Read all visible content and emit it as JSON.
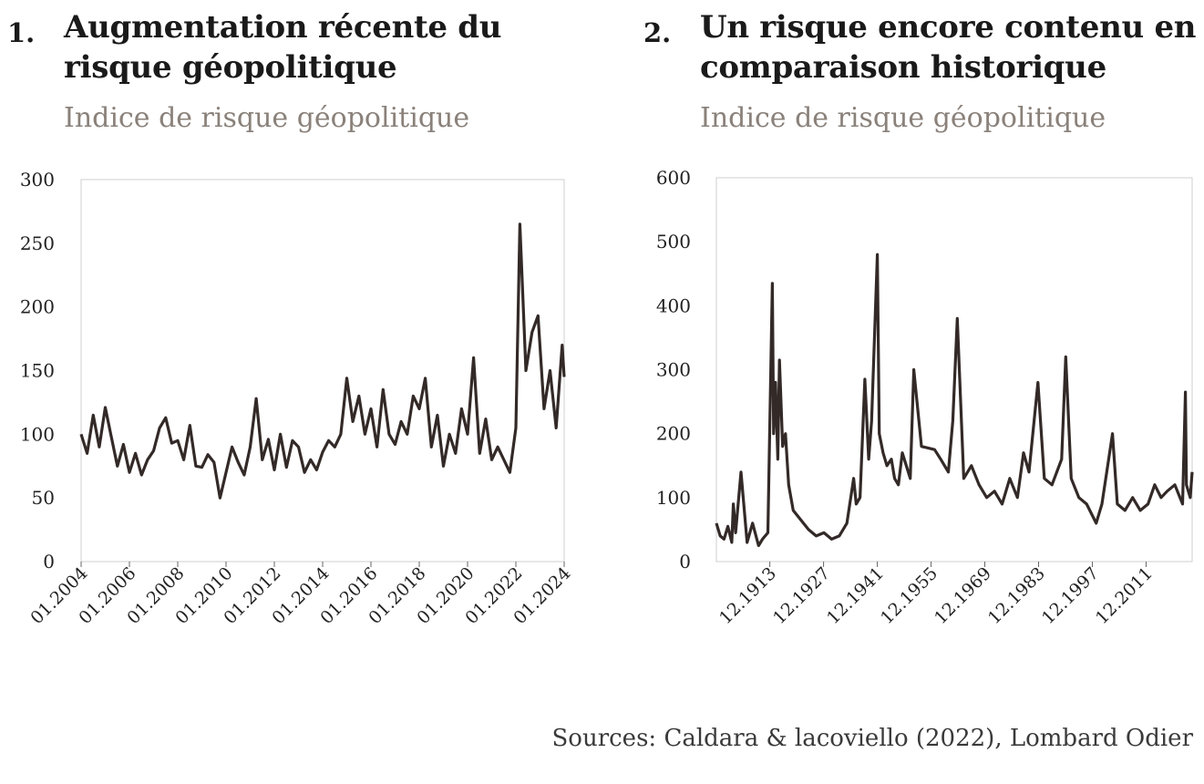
{
  "sources": "Sources: Caldara & lacoviello (2022), Lombard Odier",
  "charts": [
    {
      "number": "1.",
      "title_line1": "Augmentation récente du",
      "title_line2": "risque géopolitique",
      "subtitle": "Indice de risque géopolitique"
    },
    {
      "number": "2.",
      "title_line1": "Un risque encore contenu en",
      "title_line2": "comparaison historique",
      "subtitle": "Indice de risque géopolitique"
    }
  ],
  "chart_data": [
    {
      "type": "line",
      "title": "Augmentation récente du risque géopolitique",
      "subtitle": "Indice de risque géopolitique",
      "xlabel": "",
      "ylabel": "",
      "ylim": [
        0,
        300
      ],
      "yticks": [
        "0",
        "50",
        "100",
        "150",
        "200",
        "250",
        "300"
      ],
      "xticks": [
        "01.2004",
        "01.2006",
        "01.2008",
        "01.2010",
        "01.2012",
        "01.2014",
        "01.2016",
        "01.2018",
        "01.2020",
        "01.2022",
        "01.2024"
      ],
      "xlim": [
        "2004-01",
        "2024-01"
      ],
      "grid": false,
      "color": "#332a28",
      "series": [
        {
          "x": [
            "2004-01",
            "2004-04",
            "2004-07",
            "2004-10",
            "2005-01",
            "2005-04",
            "2005-07",
            "2005-10",
            "2006-01",
            "2006-04",
            "2006-07",
            "2006-10",
            "2007-01",
            "2007-04",
            "2007-07",
            "2007-10",
            "2008-01",
            "2008-04",
            "2008-07",
            "2008-10",
            "2009-01",
            "2009-04",
            "2009-07",
            "2009-10",
            "2010-01",
            "2010-04",
            "2010-07",
            "2010-10",
            "2011-01",
            "2011-04",
            "2011-07",
            "2011-10",
            "2012-01",
            "2012-04",
            "2012-07",
            "2012-10",
            "2013-01",
            "2013-04",
            "2013-07",
            "2013-10",
            "2014-01",
            "2014-04",
            "2014-07",
            "2014-10",
            "2015-01",
            "2015-04",
            "2015-07",
            "2015-10",
            "2016-01",
            "2016-04",
            "2016-07",
            "2016-10",
            "2017-01",
            "2017-04",
            "2017-07",
            "2017-10",
            "2018-01",
            "2018-04",
            "2018-07",
            "2018-10",
            "2019-01",
            "2019-04",
            "2019-07",
            "2019-10",
            "2020-01",
            "2020-04",
            "2020-07",
            "2020-10",
            "2021-01",
            "2021-04",
            "2021-07",
            "2021-10",
            "2022-01",
            "2022-03",
            "2022-06",
            "2022-09",
            "2022-12",
            "2023-03",
            "2023-06",
            "2023-09",
            "2023-12",
            "2024-01"
          ],
          "values": [
            100,
            85,
            115,
            90,
            121,
            98,
            75,
            92,
            70,
            85,
            68,
            80,
            87,
            105,
            113,
            93,
            95,
            80,
            107,
            75,
            74,
            84,
            78,
            50,
            70,
            90,
            78,
            68,
            90,
            128,
            80,
            96,
            72,
            100,
            74,
            95,
            90,
            70,
            80,
            72,
            86,
            95,
            90,
            100,
            144,
            110,
            130,
            100,
            120,
            90,
            135,
            100,
            92,
            110,
            100,
            130,
            120,
            144,
            90,
            115,
            75,
            100,
            85,
            120,
            100,
            160,
            85,
            112,
            80,
            90,
            80,
            70,
            105,
            265,
            150,
            180,
            193,
            120,
            150,
            105,
            170,
            145
          ]
        }
      ]
    },
    {
      "type": "line",
      "title": "Un risque encore contenu en comparaison historique",
      "subtitle": "Indice de risque géopolitique",
      "xlabel": "",
      "ylabel": "",
      "ylim": [
        0,
        600
      ],
      "yticks": [
        "0",
        "100",
        "200",
        "300",
        "400",
        "500",
        "600"
      ],
      "xticks": [
        "12.1913",
        "12.1927",
        "12.1941",
        "12.1955",
        "12.1969",
        "12.1983",
        "12.1997",
        "12.2011"
      ],
      "xlim": [
        "1900-01",
        "2023-12"
      ],
      "grid": false,
      "color": "#332a28",
      "series": [
        {
          "x": [
            "1900-01",
            "1901-01",
            "1902-01",
            "1903-01",
            "1904-01",
            "1904-06",
            "1905-01",
            "1906-06",
            "1908-01",
            "1909-06",
            "1911-01",
            "1912-01",
            "1913-06",
            "1914-08",
            "1914-12",
            "1915-06",
            "1916-01",
            "1916-06",
            "1917-04",
            "1918-01",
            "1918-11",
            "1920-01",
            "1922-01",
            "1924-01",
            "1926-01",
            "1928-01",
            "1930-01",
            "1932-01",
            "1934-01",
            "1935-10",
            "1936-06",
            "1937-06",
            "1938-09",
            "1939-09",
            "1940-06",
            "1941-12",
            "1942-06",
            "1943-06",
            "1944-06",
            "1945-08",
            "1946-06",
            "1947-06",
            "1948-06",
            "1950-07",
            "1951-06",
            "1953-06",
            "1956-11",
            "1958-06",
            "1960-06",
            "1961-08",
            "1962-10",
            "1964-06",
            "1966-06",
            "1968-06",
            "1970-06",
            "1972-06",
            "1974-06",
            "1976-06",
            "1978-06",
            "1980-01",
            "1981-06",
            "1983-10",
            "1985-06",
            "1987-06",
            "1989-12",
            "1991-01",
            "1992-06",
            "1994-06",
            "1996-06",
            "1998-12",
            "2000-06",
            "2001-09",
            "2003-03",
            "2004-06",
            "2006-06",
            "2008-06",
            "2010-06",
            "2012-06",
            "2014-03",
            "2015-11",
            "2017-06",
            "2019-06",
            "2021-06",
            "2022-03",
            "2022-06",
            "2023-06",
            "2023-12"
          ],
          "values": [
            60,
            40,
            35,
            55,
            30,
            90,
            45,
            140,
            30,
            60,
            25,
            35,
            45,
            435,
            200,
            280,
            160,
            315,
            180,
            200,
            120,
            80,
            65,
            50,
            40,
            45,
            35,
            40,
            60,
            130,
            90,
            100,
            285,
            160,
            220,
            480,
            200,
            170,
            150,
            160,
            130,
            120,
            170,
            130,
            300,
            180,
            175,
            160,
            140,
            220,
            380,
            130,
            150,
            120,
            100,
            110,
            90,
            130,
            100,
            170,
            140,
            280,
            130,
            120,
            160,
            320,
            130,
            100,
            90,
            60,
            90,
            140,
            200,
            90,
            80,
            100,
            80,
            90,
            120,
            100,
            110,
            120,
            90,
            265,
            120,
            100,
            140
          ]
        }
      ]
    }
  ]
}
